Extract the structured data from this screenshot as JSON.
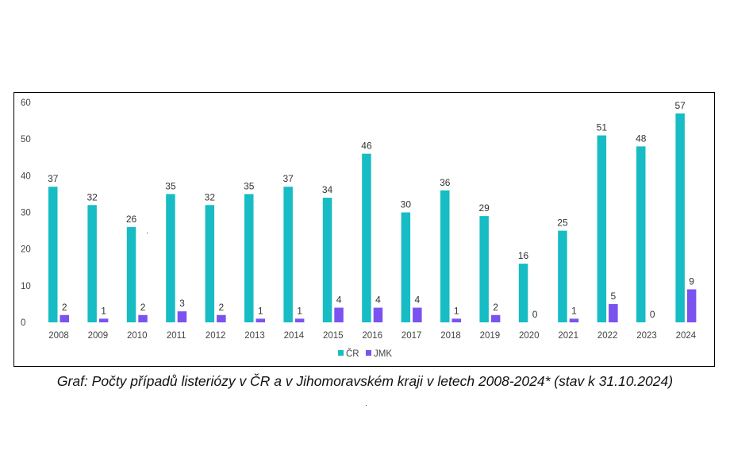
{
  "caption": "Graf: Počty případů listeriózy v ČR a v Jihomoravském kraji v letech 2008-2024* (stav k 31.10.2024)",
  "chart_data": {
    "type": "bar",
    "categories": [
      "2008",
      "2009",
      "2010",
      "2011",
      "2012",
      "2013",
      "2014",
      "2015",
      "2016",
      "2017",
      "2018",
      "2019",
      "2020",
      "2021",
      "2022",
      "2023",
      "2024"
    ],
    "series": [
      {
        "name": "ČR",
        "color": "#17BCC4",
        "values": [
          37,
          32,
          26,
          35,
          32,
          35,
          37,
          34,
          46,
          30,
          36,
          29,
          16,
          25,
          51,
          48,
          57
        ]
      },
      {
        "name": "JMK",
        "color": "#7B52F0",
        "values": [
          2,
          1,
          2,
          3,
          2,
          1,
          1,
          4,
          4,
          4,
          1,
          2,
          0,
          1,
          5,
          0,
          9
        ]
      }
    ],
    "ylim": [
      0,
      60
    ],
    "yticks": [
      0,
      10,
      20,
      30,
      40,
      50,
      60
    ],
    "grid": false,
    "legend": "bottom-center",
    "data_labels": true
  }
}
